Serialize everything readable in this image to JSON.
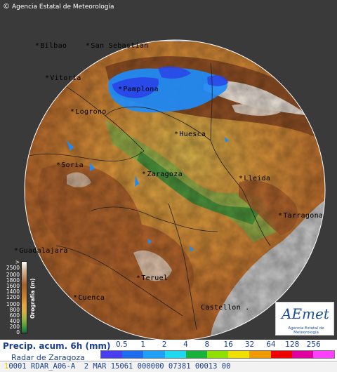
{
  "attribution": {
    "copyright": "©",
    "agency": "Agencia Estatal de Meteorología"
  },
  "cities": [
    {
      "name": "Bilbao"
    },
    {
      "name": "San Sebastian"
    },
    {
      "name": "Vitoria"
    },
    {
      "name": "Pamplona"
    },
    {
      "name": "Logrono"
    },
    {
      "name": "Huesca"
    },
    {
      "name": "Soria"
    },
    {
      "name": "Zaragoza"
    },
    {
      "name": "Lleida"
    },
    {
      "name": "Tarragona"
    },
    {
      "name": "Guadalajara"
    },
    {
      "name": "Teruel"
    },
    {
      "name": "Cuenca"
    },
    {
      "name": "Castellon"
    }
  ],
  "elevation_legend": {
    "title": "Orografía (m)",
    "ticks": [
      "> 2500",
      "2000",
      "1800",
      "1600",
      "1400",
      "1200",
      "1000",
      "800",
      "600",
      "400",
      "200",
      "0"
    ]
  },
  "logo": {
    "brand": "AEmet",
    "subtitle": "Agencia Estatal de Meteorología"
  },
  "footer": {
    "product": "Precip. acum. 6h (mm)",
    "radar": "Radar de Zaragoza",
    "scale_labels": [
      "0.5",
      "1",
      "2",
      "4",
      "8",
      "16",
      "32",
      "64",
      "128",
      "256"
    ],
    "scale_colors": [
      "#4b3ef0",
      "#1e6cf0",
      "#1ea0f8",
      "#1ed8f0",
      "#17b23a",
      "#8fe000",
      "#f0e000",
      "#f09a00",
      "#f00000",
      "#e000a0",
      "#ff40ff"
    ],
    "status_line": "0001 RDAR_A06-A  2 MAR 15061 000000 07381 00013 00"
  },
  "colors": {
    "lowland": "#3a8a3c",
    "plain": "#c9b04a",
    "midland": "#d98a33",
    "highland": "#b66a2c",
    "mountain": "#8f4f24",
    "snow": "#f4f0ea",
    "sea": "#c8c8c8",
    "outside": "#3a3a3a",
    "precip_light": "#1e8cf8",
    "precip_dark": "#2a44e8"
  }
}
